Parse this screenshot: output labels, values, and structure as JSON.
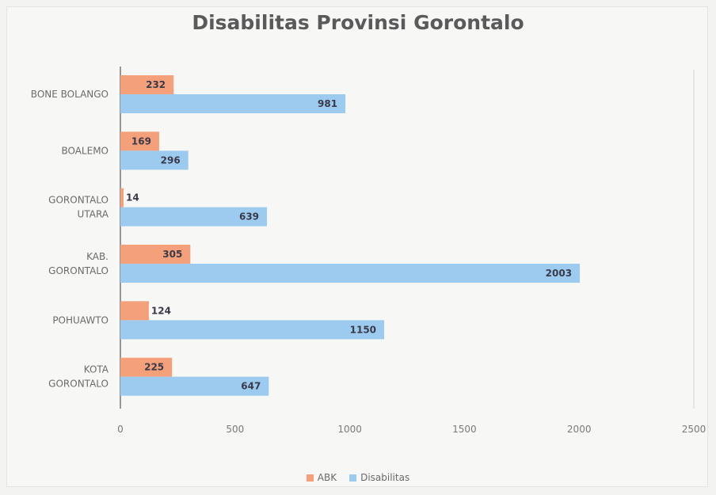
{
  "chart_data": {
    "type": "bar",
    "orientation": "horizontal",
    "title": "Disabilitas Provinsi Gorontalo",
    "categories": [
      [
        "BONE BOLANGO"
      ],
      [
        "BOALEMO"
      ],
      [
        "GORONTALO",
        "UTARA"
      ],
      [
        "KAB.",
        "GORONTALO"
      ],
      [
        "POHUAWTO"
      ],
      [
        "KOTA",
        "GORONTALO"
      ]
    ],
    "series": [
      {
        "name": "ABK",
        "values": [
          232,
          169,
          14,
          305,
          124,
          225
        ],
        "color": "#f4a07a"
      },
      {
        "name": "Disabilitas",
        "values": [
          981,
          296,
          639,
          2003,
          1150,
          647
        ],
        "color": "#9ccbef"
      }
    ],
    "xlim": [
      0,
      2500
    ],
    "xticks": [
      "0",
      "500",
      "1000",
      "1500",
      "2000",
      "2500"
    ],
    "grid": true,
    "legend_position": "bottom"
  }
}
